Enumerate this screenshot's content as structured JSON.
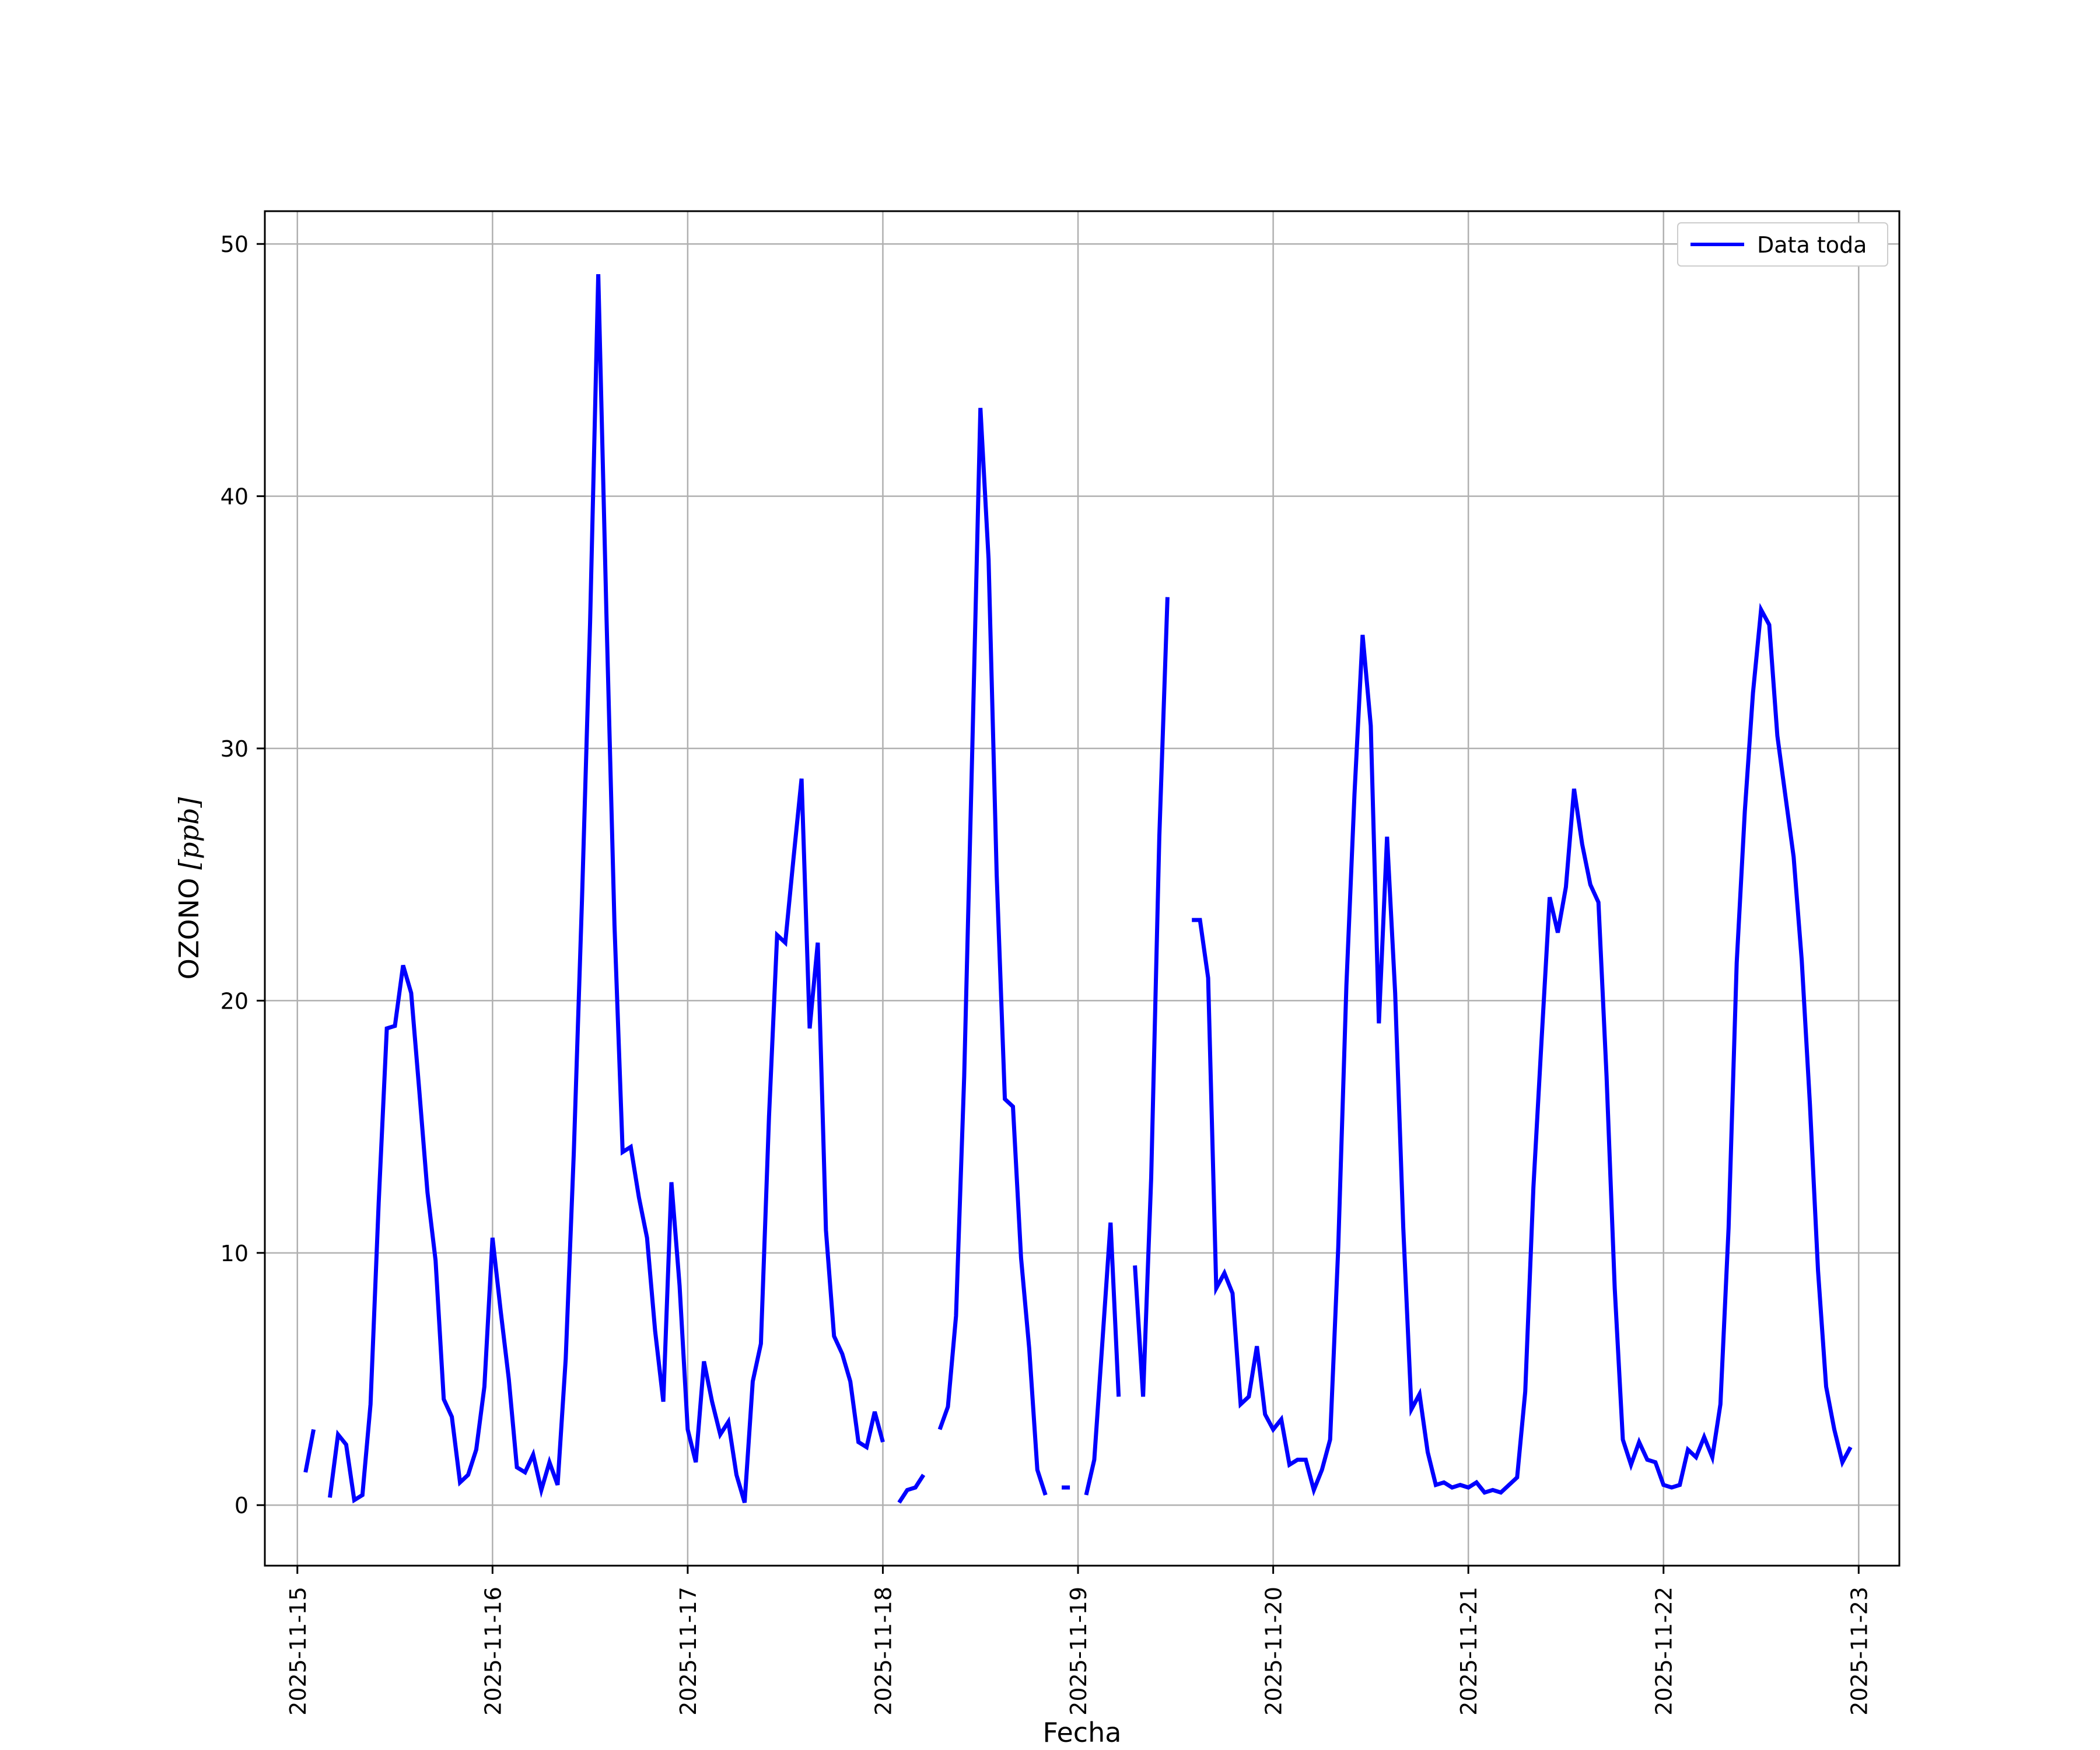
{
  "chart_data": {
    "type": "line",
    "xlabel": "Fecha",
    "ylabel": "OZONO",
    "ylabel_unit": "[ppb]",
    "xlim": [
      "2025-11-14 20:00",
      "2025-11-23 05:00"
    ],
    "ylim": [
      -2.4,
      51.3
    ],
    "x_ticks": [
      "2025-11-15",
      "2025-11-16",
      "2025-11-17",
      "2025-11-18",
      "2025-11-19",
      "2025-11-20",
      "2025-11-21",
      "2025-11-22",
      "2025-11-23"
    ],
    "y_ticks": [
      0,
      10,
      20,
      30,
      40,
      50
    ],
    "grid": true,
    "legend_position": "top-right",
    "colors": {
      "line": "#0000ff",
      "grid": "#b0b0b0",
      "axes": "#000000"
    },
    "series": [
      {
        "name": "Data toda",
        "x_start": "2025-11-15 01:00",
        "x_step": "1 hour",
        "values": [
          1.3,
          3.0,
          null,
          0.3,
          2.8,
          2.4,
          0.2,
          0.4,
          4.0,
          12.0,
          18.9,
          19.0,
          21.4,
          20.3,
          16.4,
          12.4,
          9.7,
          4.2,
          3.5,
          0.9,
          1.2,
          2.2,
          4.7,
          10.6,
          7.7,
          5.0,
          1.5,
          1.3,
          2.0,
          0.6,
          1.7,
          0.8,
          5.8,
          14.0,
          24.0,
          35.0,
          48.8,
          35.4,
          23.0,
          14.0,
          14.2,
          12.2,
          10.6,
          6.9,
          4.1,
          12.8,
          8.7,
          3.0,
          1.7,
          5.7,
          4.1,
          2.8,
          3.3,
          1.2,
          0.1,
          4.9,
          6.4,
          15.4,
          22.6,
          22.3,
          25.6,
          28.8,
          18.9,
          22.3,
          10.9,
          6.7,
          6.0,
          4.9,
          2.5,
          2.3,
          3.7,
          2.5,
          null,
          0.1,
          0.6,
          0.7,
          1.2,
          null,
          3.0,
          3.9,
          7.5,
          17.0,
          30.0,
          43.5,
          37.5,
          25.0,
          16.1,
          15.8,
          9.8,
          6.2,
          1.4,
          0.4,
          null,
          0.7,
          0.7,
          null,
          0.4,
          1.8,
          6.5,
          11.2,
          4.3,
          null,
          9.5,
          4.3,
          13.0,
          26.5,
          36.0,
          null,
          null,
          23.2,
          23.2,
          20.9,
          8.6,
          9.2,
          8.4,
          4.0,
          4.3,
          6.3,
          3.6,
          3.0,
          3.4,
          1.6,
          1.8,
          1.8,
          0.6,
          1.4,
          2.6,
          10.2,
          20.6,
          28.2,
          34.5,
          30.9,
          19.1,
          26.5,
          20.3,
          11.0,
          3.8,
          4.4,
          2.1,
          0.8,
          0.9,
          0.7,
          0.8,
          0.7,
          0.9,
          0.5,
          0.6,
          0.5,
          0.8,
          1.1,
          4.5,
          12.6,
          18.4,
          24.1,
          22.7,
          24.5,
          28.4,
          26.2,
          24.6,
          23.9,
          17.0,
          8.6,
          2.6,
          1.6,
          2.5,
          1.8,
          1.7,
          0.8,
          0.7,
          0.8,
          2.2,
          1.9,
          2.7,
          1.9,
          4.0,
          11.0,
          21.5,
          27.5,
          32.2,
          35.5,
          34.9,
          30.5,
          28.1,
          25.7,
          21.6,
          15.9,
          9.3,
          4.7,
          3.0,
          1.7,
          2.3
        ]
      }
    ]
  }
}
